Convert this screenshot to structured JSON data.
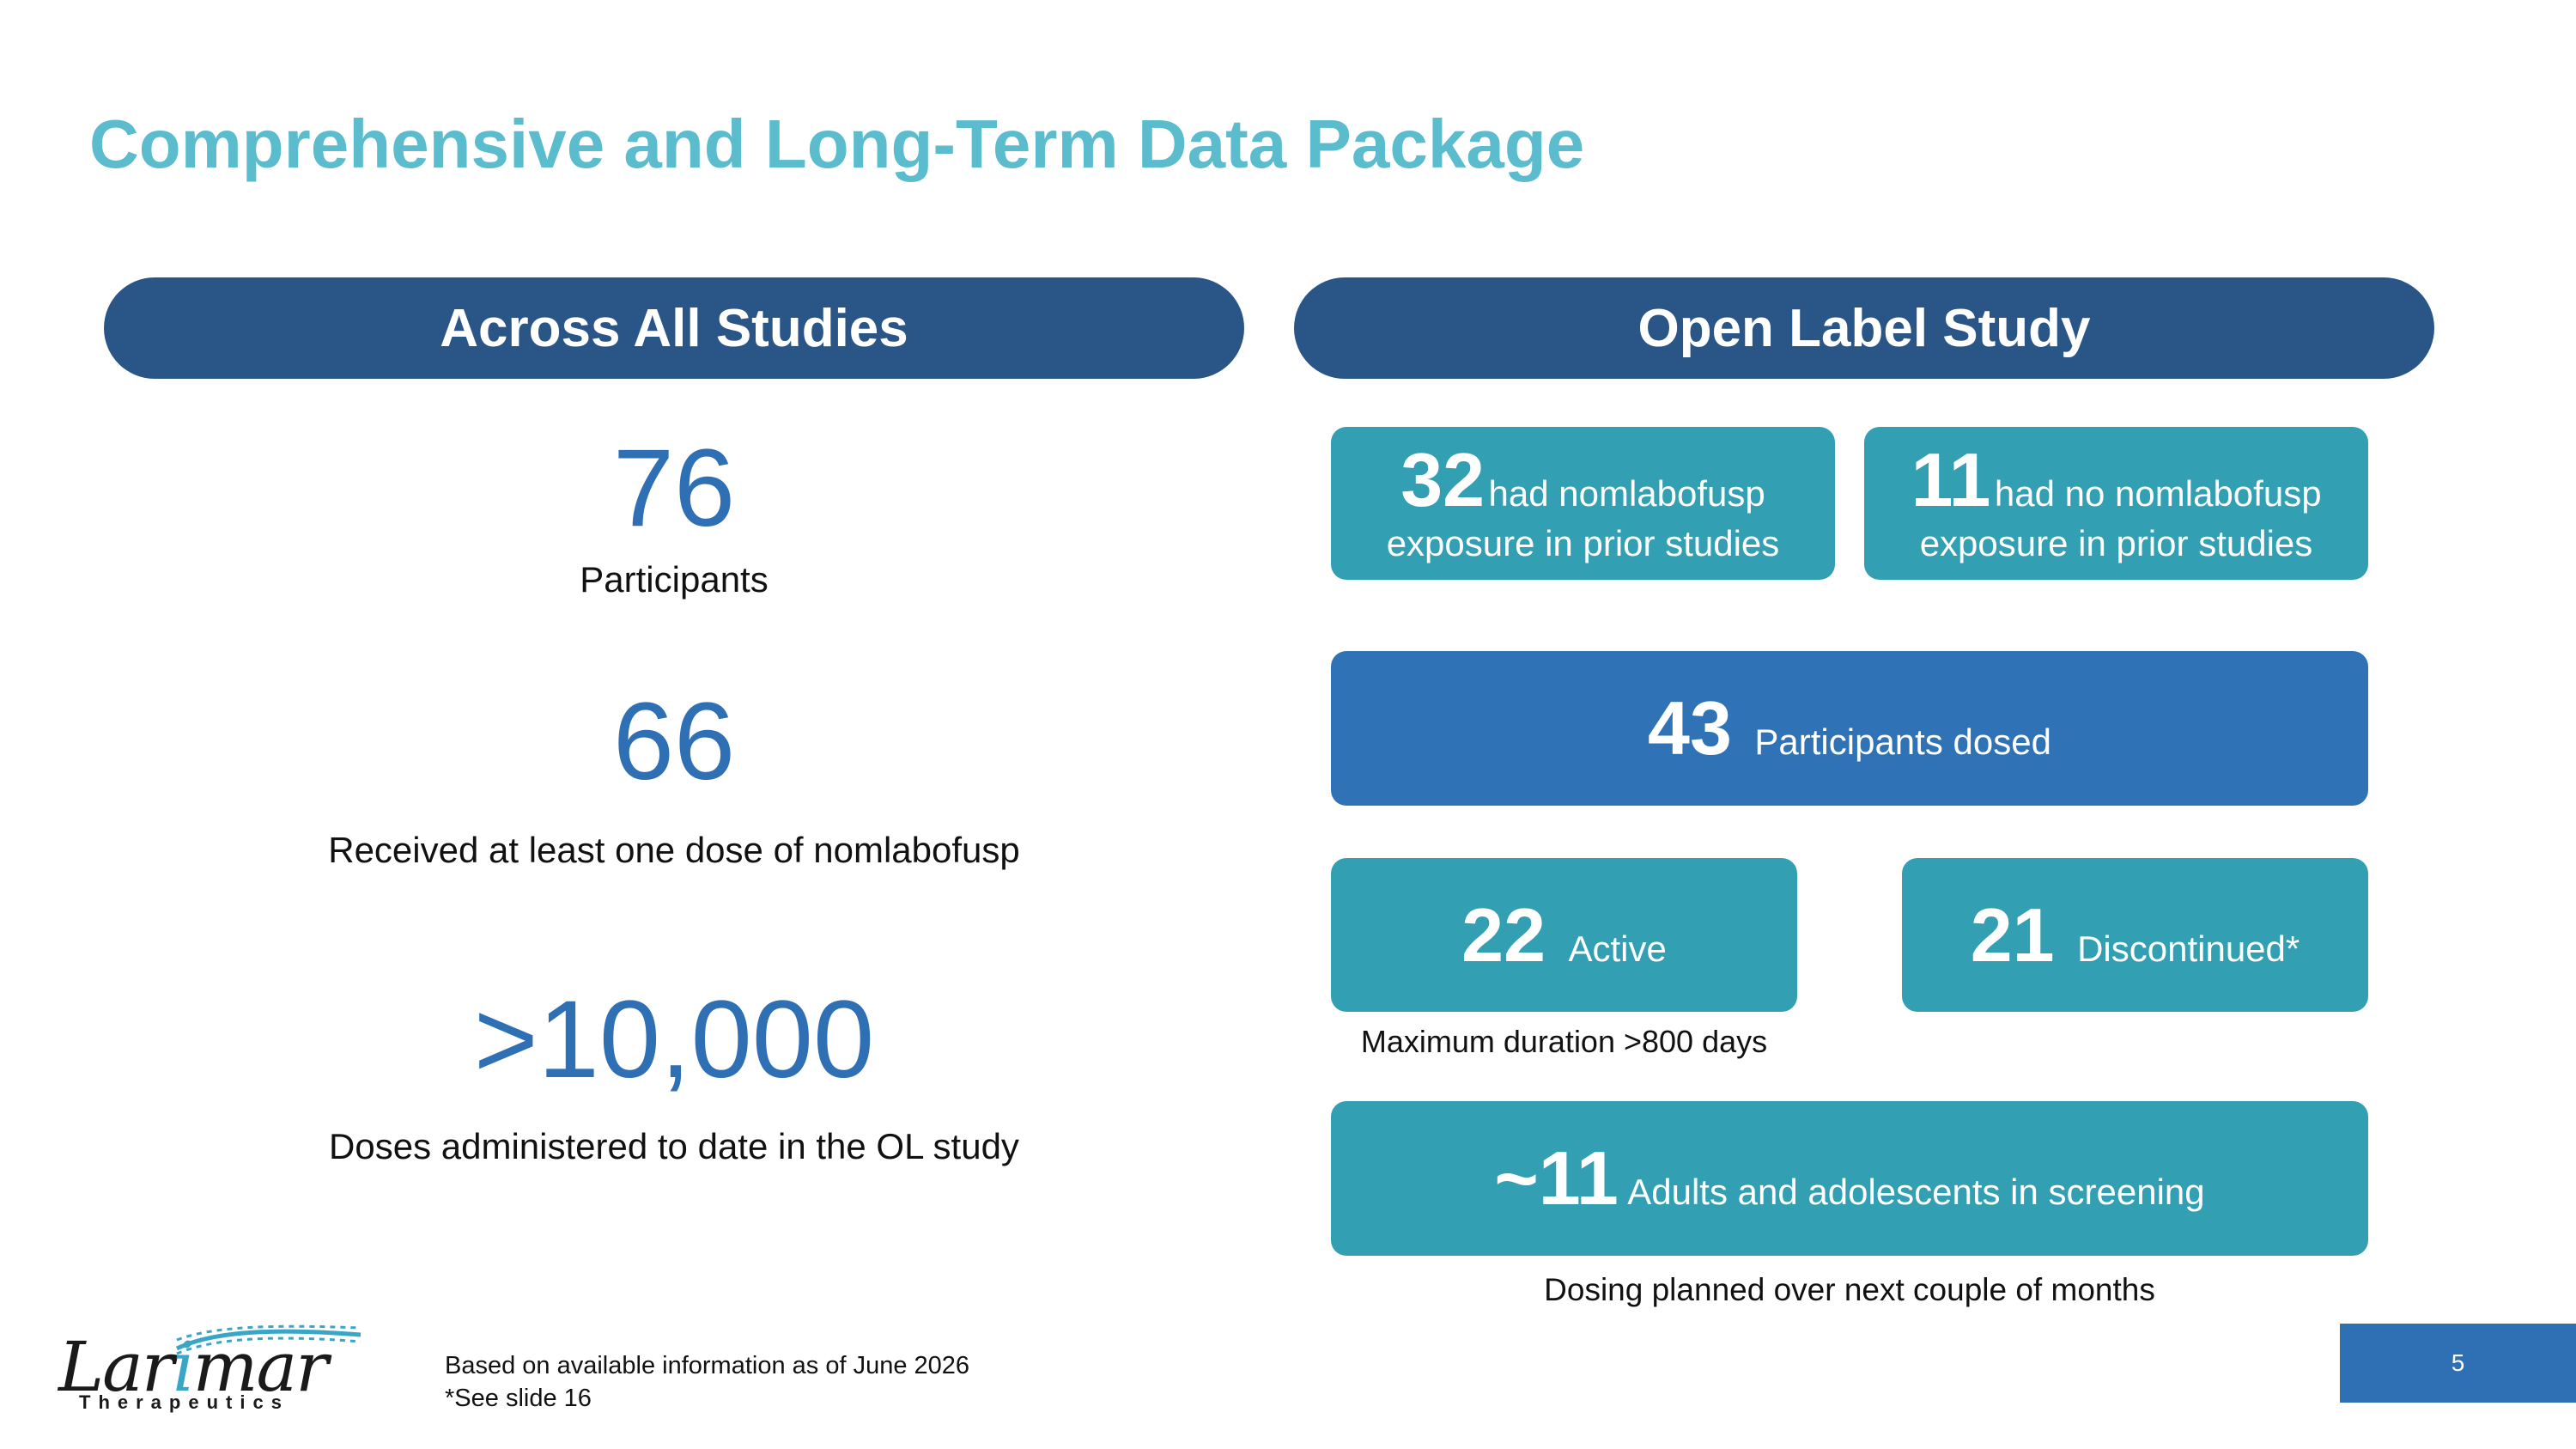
{
  "title": "Comprehensive and Long-Term Data Package",
  "left_column": {
    "header": "Across All Studies",
    "stats": [
      {
        "value": "76",
        "label": "Participants"
      },
      {
        "value": "66",
        "label": "Received at least one dose of nomlabofusp"
      },
      {
        "value": ">10,000",
        "label": "Doses administered to date in the OL study"
      }
    ]
  },
  "right_column": {
    "header": "Open Label Study",
    "prior_exposure": {
      "value": "32",
      "line1": "had nomlabofusp",
      "line2": "exposure in prior studies"
    },
    "no_prior_exposure": {
      "value": "11",
      "line1": "had no nomlabofusp",
      "line2": "exposure in prior studies"
    },
    "dosed": {
      "value": "43",
      "label": "Participants dosed"
    },
    "active": {
      "value": "22",
      "label": "Active"
    },
    "discontinued": {
      "value": "21",
      "label": "Discontinued*"
    },
    "active_note": "Maximum duration >800 days",
    "screening": {
      "value": "~11",
      "label": "Adults and adolescents in screening"
    },
    "screening_note": "Dosing planned over next couple of months"
  },
  "footer": {
    "note1": "Based on available information as of June 2026",
    "note2": "*See slide 16",
    "page_number": "5"
  },
  "logo": {
    "word_start": "Lar",
    "word_highlight": "i",
    "word_end": "mar",
    "subtitle": "Therapeutics"
  },
  "colors": {
    "title": "#5bbccd",
    "pill": "#2a5587",
    "teal_box": "#329fb3",
    "blue_box": "#2f73b6",
    "stat_number": "#2f6fb4"
  }
}
